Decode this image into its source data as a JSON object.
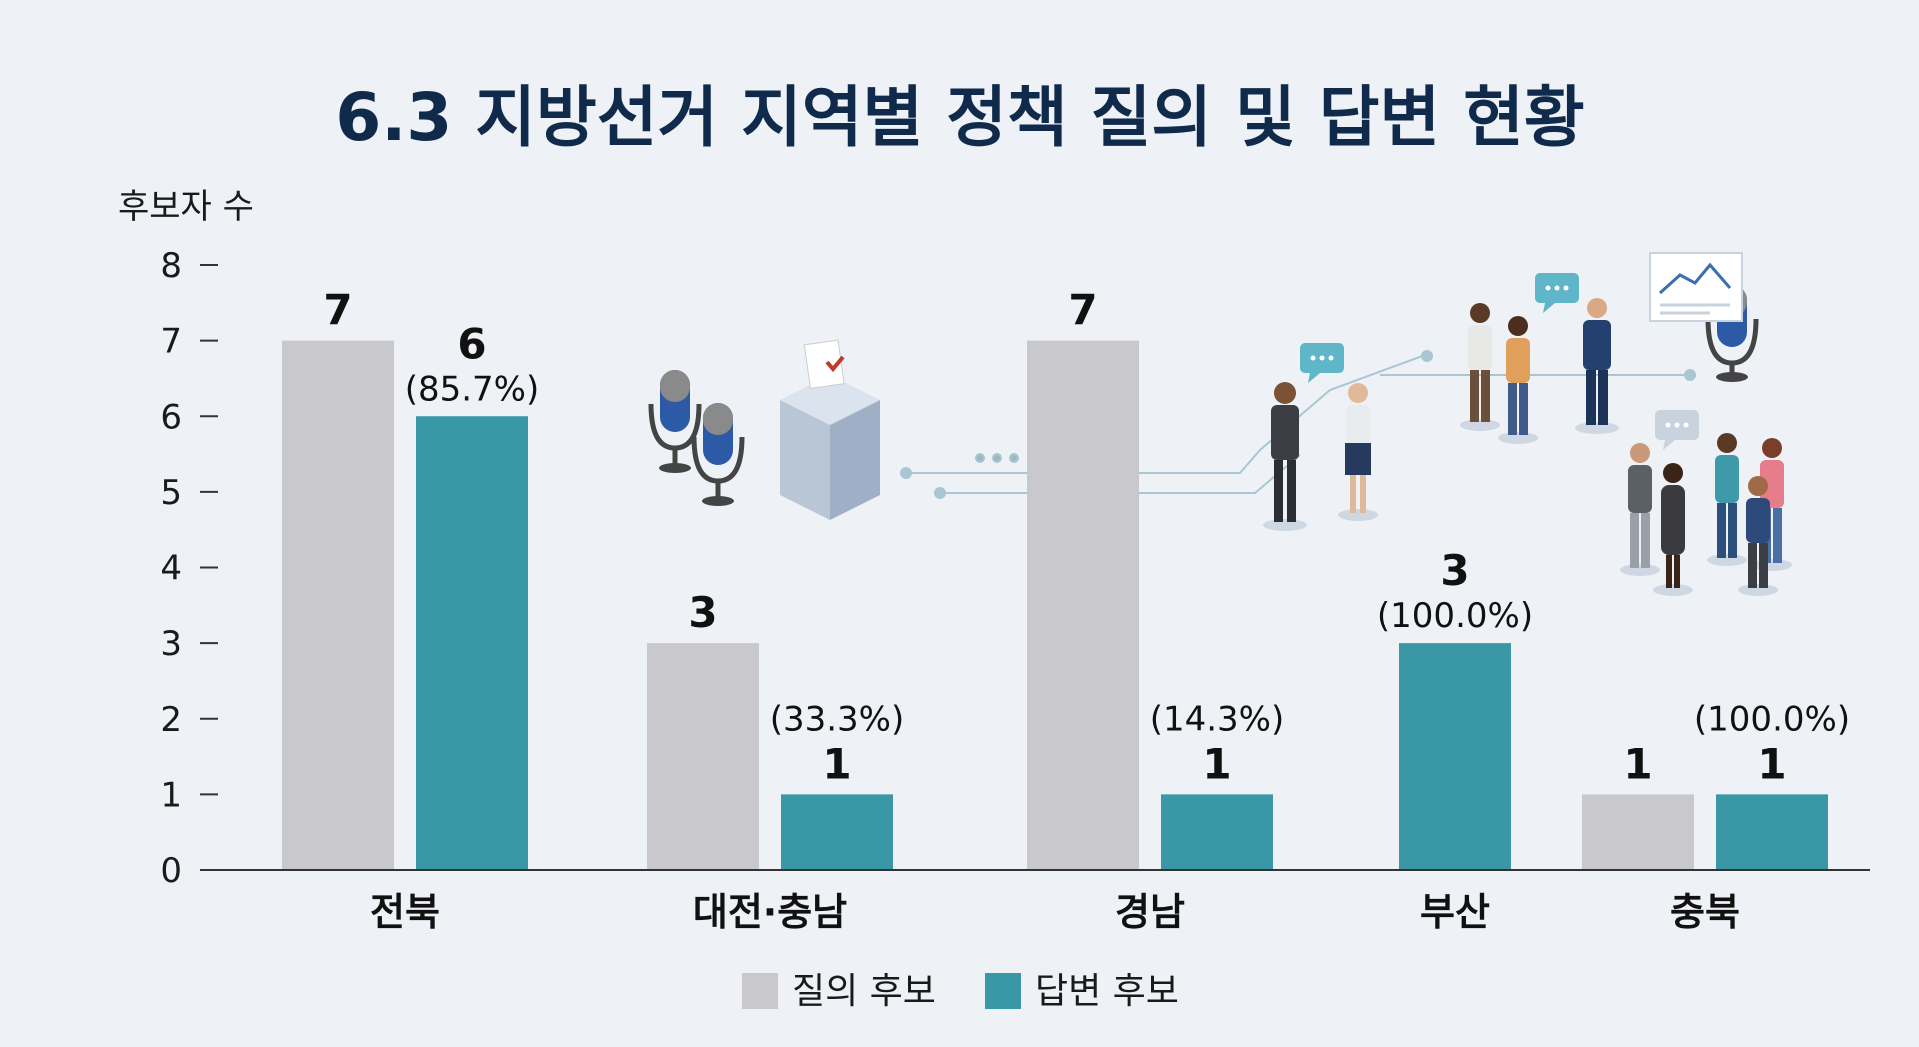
{
  "chart_data": {
    "type": "bar",
    "title": "6.3 지방선거 지역별 정책 질의 및 답변 현황",
    "ylabel": "후보자 수",
    "ylim": [
      0,
      8
    ],
    "yticks": [
      0,
      1,
      2,
      3,
      4,
      5,
      6,
      7,
      8
    ],
    "categories": [
      "전북",
      "대전·충남",
      "경남",
      "부산",
      "충북"
    ],
    "series": [
      {
        "name": "질의 후보",
        "values": [
          7,
          3,
          7,
          null,
          1
        ],
        "labels": [
          "7",
          "3",
          "7",
          "",
          "1"
        ]
      },
      {
        "name": "답변 후보",
        "values": [
          6,
          1,
          1,
          3,
          1
        ],
        "labels": [
          "6",
          "1",
          "1",
          "3",
          "1"
        ],
        "pct_labels": [
          "(85.7%)",
          "(33.3%)",
          "(14.3%)",
          "(100.0%)",
          "(100.0%)"
        ]
      }
    ],
    "legend_position": "bottom",
    "grid": false
  },
  "colors": {
    "question": "#c9c9cd",
    "answer": "#3a97a5",
    "title": "#0f2a4a",
    "background": "#eef2f7"
  },
  "icons": [
    "microphone-icon",
    "ballot-box-icon",
    "people-discussion-icon",
    "presentation-board-icon",
    "speech-bubble-icon"
  ]
}
